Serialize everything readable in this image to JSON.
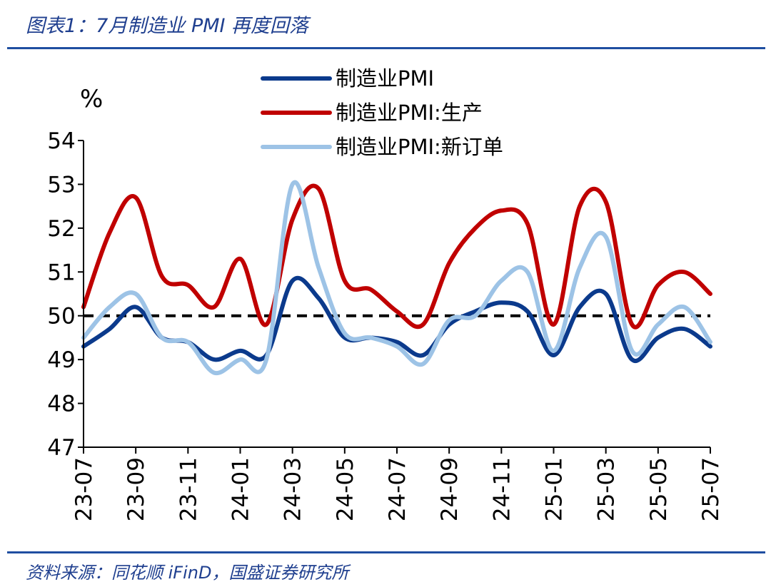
{
  "header": {
    "title": "图表1：7月制造业 PMI 再度回落"
  },
  "footer": {
    "source": "资料来源：同花顺 iFinD，国盛证券研究所"
  },
  "colors": {
    "pmi": "#0b3a8c",
    "production": "#c00000",
    "new_orders": "#9dc3e6",
    "reference": "#000000",
    "accent": "#1f4ea1"
  },
  "chart_data": {
    "type": "line",
    "title": "",
    "xlabel": "",
    "ylabel": "%",
    "ylim": [
      47,
      54
    ],
    "yticks": [
      47,
      48,
      49,
      50,
      51,
      52,
      53,
      54
    ],
    "grid": false,
    "legend_position": "top",
    "x": [
      "23-07",
      "23-08",
      "23-09",
      "23-10",
      "23-11",
      "23-12",
      "24-01",
      "24-02",
      "24-03",
      "24-04",
      "24-05",
      "24-06",
      "24-07",
      "24-08",
      "24-09",
      "24-10",
      "24-11",
      "24-12",
      "25-01",
      "25-02",
      "25-03",
      "25-04",
      "25-05",
      "25-06",
      "25-07"
    ],
    "xtick_labels": [
      "23-07",
      "23-09",
      "23-11",
      "24-01",
      "24-03",
      "24-05",
      "24-07",
      "24-09",
      "24-11",
      "25-01",
      "25-03",
      "25-05",
      "25-07"
    ],
    "reference_line": 50,
    "series": [
      {
        "name": "制造业PMI",
        "color": "#0b3a8c",
        "values": [
          49.3,
          49.7,
          50.2,
          49.5,
          49.4,
          49.0,
          49.2,
          49.1,
          50.8,
          50.4,
          49.5,
          49.5,
          49.4,
          49.1,
          49.8,
          50.1,
          50.3,
          50.1,
          49.1,
          50.2,
          50.5,
          49.0,
          49.5,
          49.7,
          49.3
        ]
      },
      {
        "name": "制造业PMI:生产",
        "color": "#c00000",
        "values": [
          50.2,
          51.9,
          52.7,
          50.9,
          50.7,
          50.2,
          51.3,
          49.8,
          52.2,
          52.9,
          50.8,
          50.6,
          50.1,
          49.8,
          51.2,
          52.0,
          52.4,
          52.1,
          49.8,
          52.5,
          52.6,
          49.8,
          50.7,
          51.0,
          50.5
        ]
      },
      {
        "name": "制造业PMI:新订单",
        "color": "#9dc3e6",
        "values": [
          49.5,
          50.2,
          50.5,
          49.5,
          49.4,
          48.7,
          49.0,
          49.0,
          53.0,
          51.1,
          49.6,
          49.5,
          49.3,
          48.9,
          49.9,
          50.0,
          50.8,
          51.0,
          49.2,
          51.1,
          51.8,
          49.2,
          49.8,
          50.2,
          49.4
        ]
      }
    ]
  }
}
